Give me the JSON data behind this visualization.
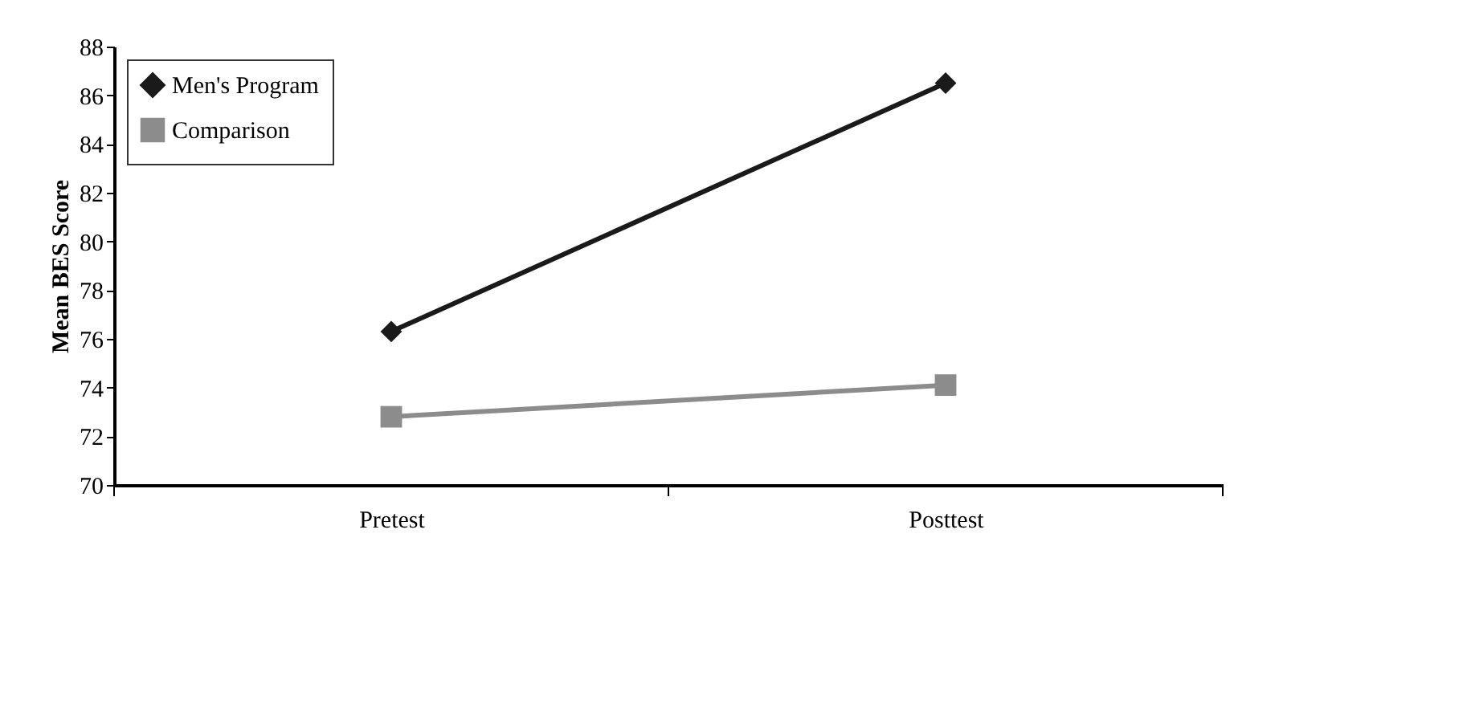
{
  "chart_data": {
    "type": "line",
    "ylabel": "Mean BES Score",
    "categories": [
      "Pretest",
      "Posttest"
    ],
    "series": [
      {
        "name": "Men's Program",
        "color": "#1a1a1a",
        "marker": "diamond",
        "values": [
          76.3,
          86.5
        ]
      },
      {
        "name": "Comparison",
        "color": "#8c8c8c",
        "marker": "square",
        "values": [
          72.8,
          74.1
        ]
      }
    ],
    "ylim": [
      70,
      88
    ],
    "yticks": [
      70,
      72,
      74,
      76,
      78,
      80,
      82,
      84,
      86,
      88
    ],
    "grid": false,
    "legend": "top left",
    "line_style": "solid"
  }
}
